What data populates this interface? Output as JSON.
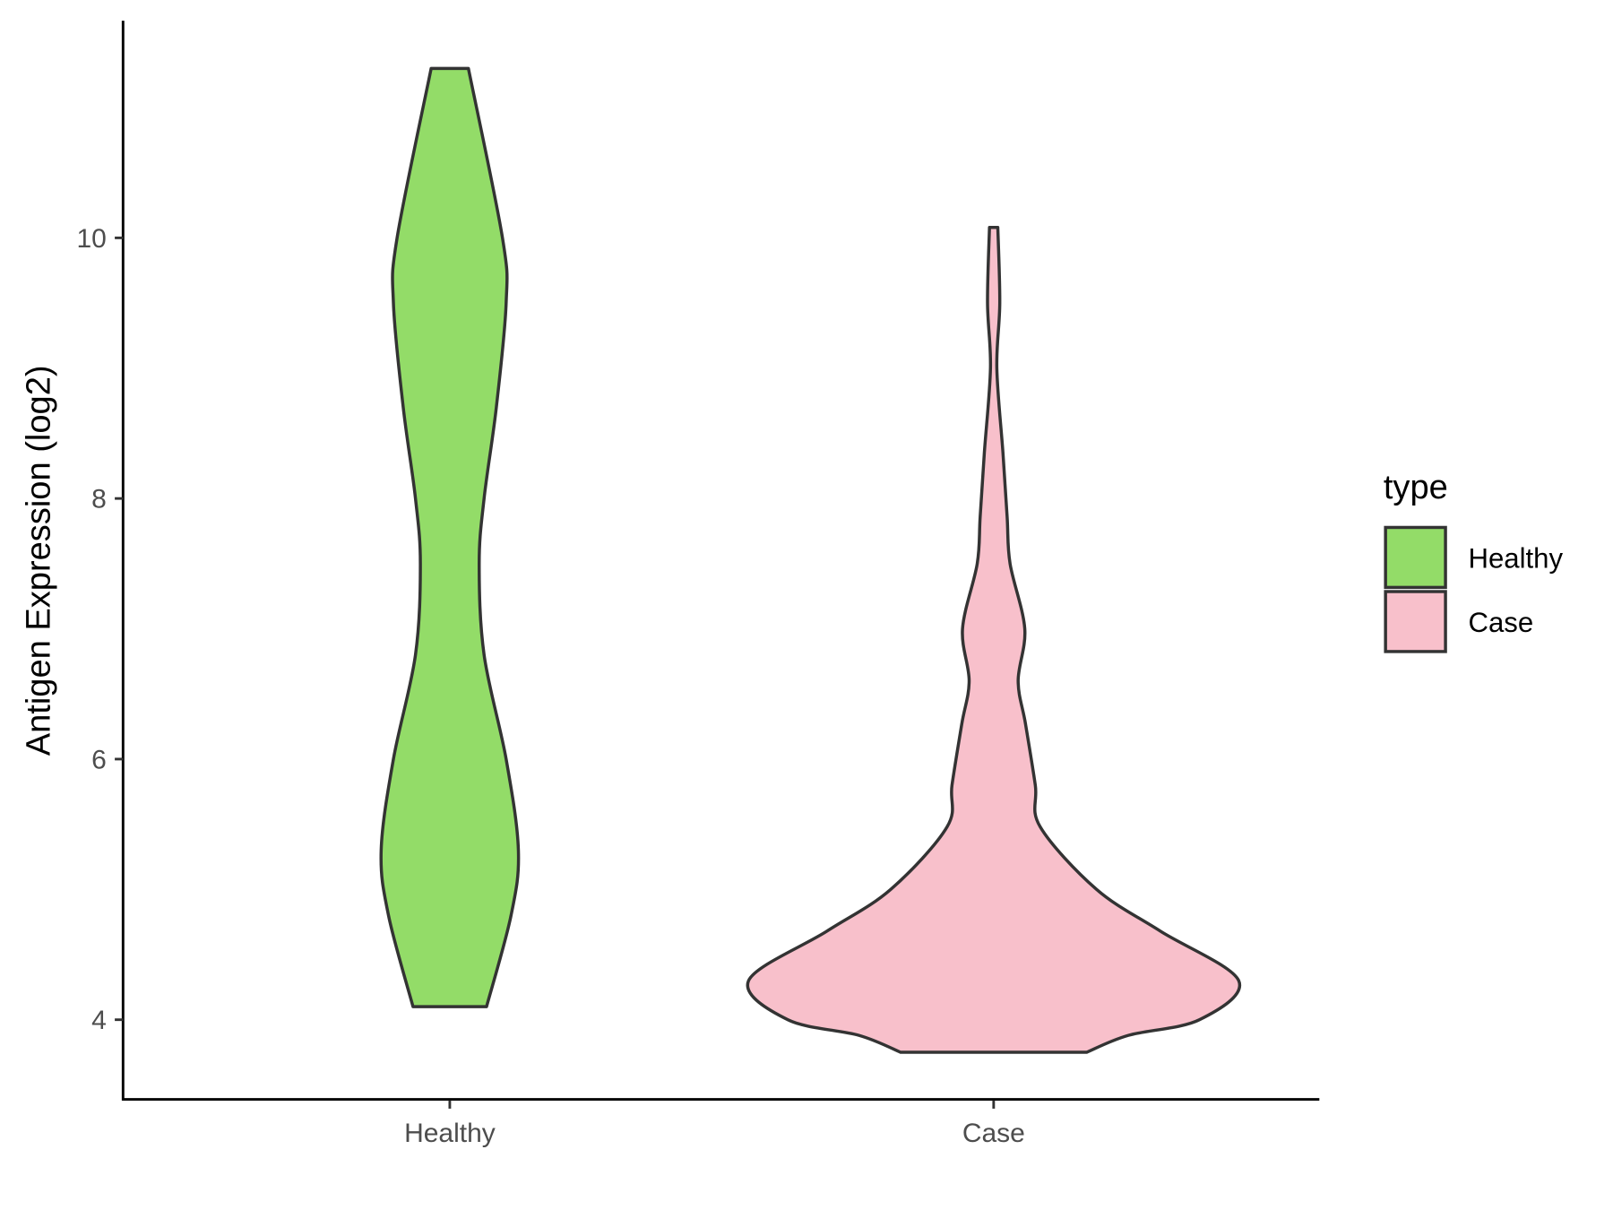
{
  "chart_data": {
    "type": "violin",
    "title": "",
    "xlabel": "",
    "ylabel": "Antigen Expression (log2)",
    "ylim": [
      3.4,
      11.7
    ],
    "yticks": [
      4,
      6,
      8,
      10
    ],
    "categories": [
      "Healthy",
      "Case"
    ],
    "grid": false,
    "legend": {
      "title": "type",
      "placement": "right",
      "entries": [
        "Healthy",
        "Case"
      ]
    },
    "series": [
      {
        "name": "Healthy",
        "color": "#93dc68",
        "profile": [
          [
            4.1,
            0.15
          ],
          [
            4.8,
            0.25
          ],
          [
            5.3,
            0.28
          ],
          [
            6.0,
            0.23
          ],
          [
            6.8,
            0.14
          ],
          [
            7.5,
            0.12
          ],
          [
            8.0,
            0.14
          ],
          [
            8.7,
            0.19
          ],
          [
            9.5,
            0.23
          ],
          [
            10.0,
            0.215
          ],
          [
            11.3,
            0.076
          ]
        ]
      },
      {
        "name": "Case",
        "color": "#f8c0cb",
        "profile": [
          [
            3.75,
            0.38
          ],
          [
            3.88,
            0.55
          ],
          [
            4.0,
            0.84
          ],
          [
            4.3,
            1.0
          ],
          [
            4.68,
            0.68
          ],
          [
            5.0,
            0.42
          ],
          [
            5.48,
            0.19
          ],
          [
            5.8,
            0.17
          ],
          [
            6.27,
            0.13
          ],
          [
            6.6,
            0.1
          ],
          [
            7.0,
            0.127
          ],
          [
            7.5,
            0.067
          ],
          [
            7.86,
            0.055
          ],
          [
            8.35,
            0.038
          ],
          [
            9.0,
            0.013
          ],
          [
            9.5,
            0.025
          ],
          [
            10.08,
            0.017
          ]
        ]
      }
    ]
  }
}
